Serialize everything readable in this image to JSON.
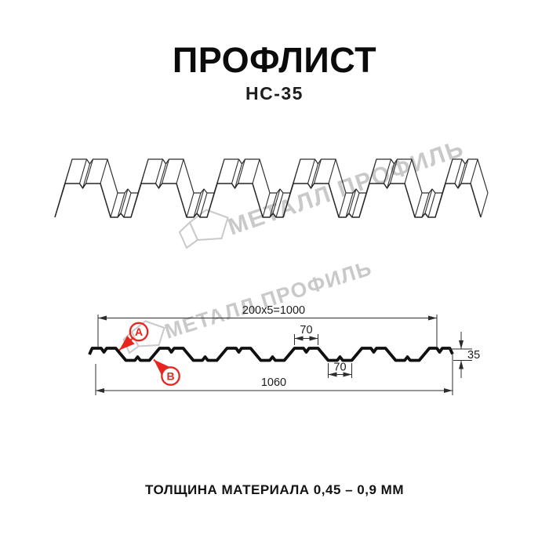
{
  "page": {
    "title": "ПРОФЛИСТ",
    "model": "НС-35",
    "footer_note": "ТОЛЩИНА МАТЕРИАЛА 0,45 – 0,9 ММ"
  },
  "watermark": {
    "brand": "МЕТАЛЛ ПРОФИЛЬ"
  },
  "drawing": {
    "labels": {
      "face_a": "А",
      "face_b": "В"
    },
    "dimensions": {
      "pitch": "200x5=1000",
      "rib_top_width": "70",
      "rib_bottom_width": "70",
      "overall_width": "1060",
      "profile_height": "35"
    }
  },
  "colors": {
    "accent_red": "#E6251F",
    "watermark_gray": "#C9C9C9",
    "line_dark": "#2D2D2D"
  }
}
